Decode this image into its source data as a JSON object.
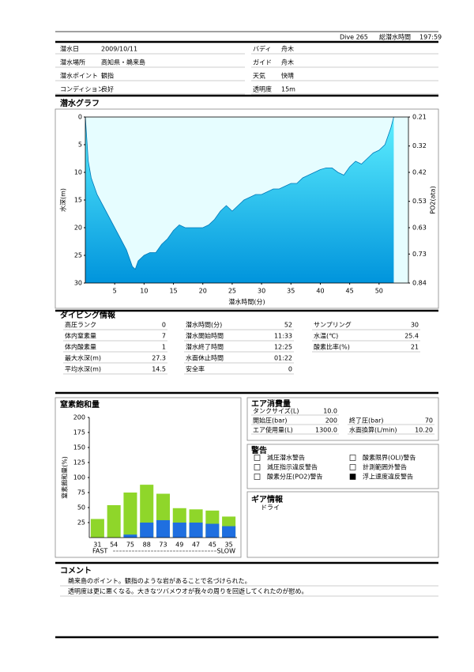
{
  "header": {
    "dive": "Dive 265",
    "total_label": "総潜水時間",
    "total": "197:59"
  },
  "info_left": [
    {
      "label": "潜水日",
      "value": "2009/10/11"
    },
    {
      "label": "潜水場所",
      "value": "高知県・鵜来島"
    },
    {
      "label": "潜水ポイント",
      "value": "観指"
    },
    {
      "label": "コンディション",
      "value": "良好"
    }
  ],
  "info_right": [
    {
      "label": "バディ",
      "value": "舟木"
    },
    {
      "label": "ガイド",
      "value": "舟木"
    },
    {
      "label": "天気",
      "value": "快晴"
    },
    {
      "label": "透明度",
      "value": "15m"
    }
  ],
  "chart_data": [
    {
      "type": "area",
      "title": "潜水グラフ",
      "x_label": "潜水時間(分)",
      "y_label": "水深(m)",
      "y2_label": "PO2(ata)",
      "x": [
        0,
        0.5,
        1,
        2,
        3,
        4,
        5,
        6,
        7,
        8,
        8.5,
        9,
        10,
        11,
        12,
        13,
        14,
        15,
        16,
        17,
        18,
        20,
        21,
        22,
        23,
        24,
        25,
        26,
        27,
        28,
        29,
        30,
        31,
        32,
        33,
        34,
        35,
        36,
        37,
        38,
        39,
        40,
        41,
        42,
        43,
        44,
        45,
        46,
        47,
        48,
        49,
        50,
        51,
        52,
        52.5
      ],
      "values": [
        0,
        8,
        11,
        14,
        16,
        18,
        20,
        22,
        24,
        27,
        27.5,
        26,
        25,
        24.5,
        24.5,
        23,
        22,
        20.5,
        19.5,
        20,
        20,
        20,
        19.5,
        18.5,
        17,
        16,
        17,
        16,
        15,
        14.5,
        14,
        14,
        13.5,
        13,
        13,
        12.5,
        12,
        12,
        11,
        10.5,
        10,
        9.5,
        9.2,
        9.2,
        10,
        10.5,
        9,
        8,
        8.5,
        7.5,
        6.5,
        6,
        5,
        2,
        0
      ],
      "xlim": [
        0,
        55
      ],
      "xticks": [
        5,
        10,
        15,
        20,
        25,
        30,
        35,
        40,
        45,
        50
      ],
      "ylim": [
        0,
        30
      ],
      "y_inverted": true,
      "yticks": [
        0,
        5,
        10,
        15,
        20,
        25,
        30
      ],
      "y2lim": [
        0.21,
        0.84
      ],
      "y2ticks": [
        0.21,
        0.32,
        0.42,
        0.53,
        0.63,
        0.73,
        0.84
      ],
      "color": "#00c8ec",
      "background": "#e6fdff"
    },
    {
      "type": "bar",
      "title": "窒素飽和量",
      "y_label": "窒素飽和量(%)",
      "fast": "FAST",
      "slow": "SLOW",
      "ylim": [
        0,
        200
      ],
      "yticks": [
        25,
        50,
        75,
        100,
        125,
        150,
        175,
        200
      ],
      "series": [
        {
          "color": "#8fd62a",
          "values": [
            31,
            54,
            75,
            88,
            73,
            49,
            47,
            45,
            35
          ]
        },
        {
          "color": "#1f6fe0",
          "values": [
            0,
            0,
            5,
            25,
            29,
            25,
            25,
            23,
            19
          ]
        }
      ]
    }
  ],
  "dive_info": {
    "title": "ダイビング情報",
    "columns": [
      [
        {
          "label": "高圧ランク",
          "value": 0
        },
        {
          "label": "体内窒素量",
          "value": 7
        },
        {
          "label": "体内酸素量",
          "value": 1
        },
        {
          "label": "最大水深(m)",
          "value": 27.3
        },
        {
          "label": "平均水深(m)",
          "value": 14.5
        }
      ],
      [
        {
          "label": "潜水時間(分)",
          "value": 52
        },
        {
          "label": "潜水開始時間",
          "value": "11:33"
        },
        {
          "label": "潜水終了時間",
          "value": "12:25"
        },
        {
          "label": "水面休止時間",
          "value": "01:22"
        },
        {
          "label": "安全率",
          "value": 0
        }
      ],
      [
        {
          "label": "サンプリング",
          "value": 30
        },
        {
          "label": "水温(℃)",
          "value": 25.4
        },
        {
          "label": "酸素比率(%)",
          "value": 21
        }
      ]
    ]
  },
  "air": {
    "title": "エア消費量",
    "rows": [
      [
        {
          "label": "タンクサイズ(L)",
          "value": "10.0"
        }
      ],
      [
        {
          "label": "開始圧(bar)",
          "value": 200
        },
        {
          "label": "終了圧(bar)",
          "value": 70
        }
      ],
      [
        {
          "label": "エア使用量(L)",
          "value": "1300.0"
        },
        {
          "label": "水面換算(L/min)",
          "value": "10.20"
        }
      ]
    ]
  },
  "warnings": {
    "title": "警告",
    "items": [
      {
        "label": "減圧潜水警告",
        "checked": false
      },
      {
        "label": "酸素限界(OLI)警告",
        "checked": false
      },
      {
        "label": "減圧指示違反警告",
        "checked": false
      },
      {
        "label": "計測範囲外警告",
        "checked": false
      },
      {
        "label": "酸素分圧(PO2)警告",
        "checked": false
      },
      {
        "label": "浮上速度違反警告",
        "checked": true
      }
    ]
  },
  "gear": {
    "title": "ギア情報",
    "value": "ドライ"
  },
  "comment": {
    "title": "コメント",
    "lines": [
      "鵜来島のポイント。観指のような岩があることで名づけられた。",
      "透明度は更に悪くなる。大きなツバメウオが我々の周りを回遊してくれたのが慰め。"
    ]
  }
}
